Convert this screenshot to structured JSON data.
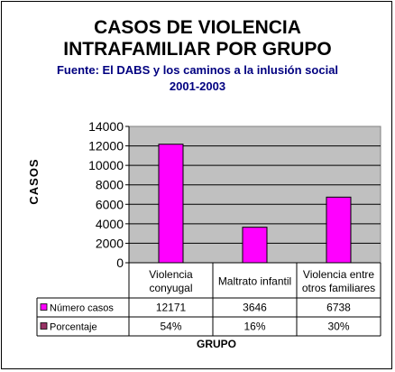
{
  "chart_data": {
    "type": "bar",
    "title": [
      "CASOS DE VIOLENCIA",
      "INTRAFAMILIAR POR GRUPO"
    ],
    "subtitle": [
      "Fuente: El DABS y los caminos a la inlusión social",
      "2001-2003"
    ],
    "ylabel": "CASOS",
    "xlabel": "GRUPO",
    "ylim": [
      0,
      14000
    ],
    "yticks": [
      "0",
      "2000",
      "4000",
      "6000",
      "8000",
      "10000",
      "12000",
      "14000"
    ],
    "categories": [
      [
        "Violencia",
        "conyugal"
      ],
      [
        "Maltrato infantil"
      ],
      [
        "Violencia entre",
        "otros familiares"
      ]
    ],
    "series": [
      {
        "name": "Número casos",
        "values": [
          12171,
          3646,
          6738
        ],
        "color": "#ff00ff"
      },
      {
        "name": "Porcentaje",
        "values": [
          54,
          16,
          30
        ],
        "color": "#993366",
        "plotted": false
      }
    ],
    "table_rows": [
      {
        "label": "Número casos",
        "cells": [
          "12171",
          "3646",
          "6738"
        ],
        "color": "#ff00ff"
      },
      {
        "label": "Porcentaje",
        "cells": [
          "54%",
          "16%",
          "30%"
        ],
        "color": "#993366"
      }
    ],
    "grid": true,
    "plot_background": "#c0c0c0"
  }
}
